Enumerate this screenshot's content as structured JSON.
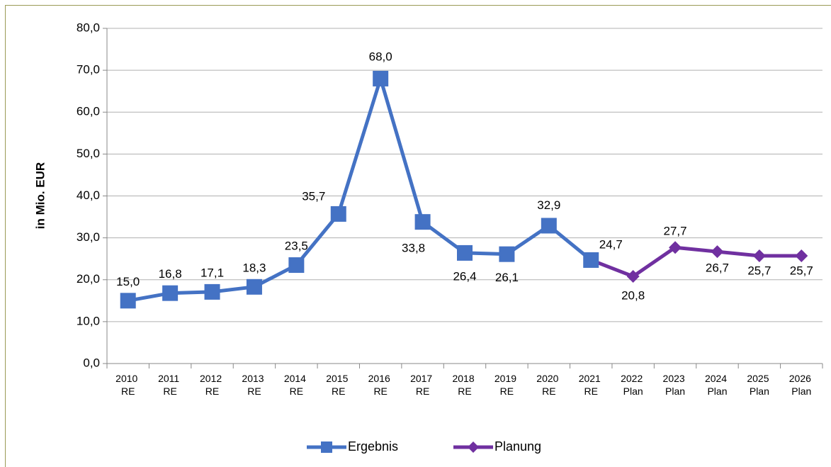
{
  "chart_data": {
    "type": "line",
    "y_label": "in Mio. EUR",
    "categories": [
      "2010 RE",
      "2011 RE",
      "2012 RE",
      "2013 RE",
      "2014 RE",
      "2015 RE",
      "2016 RE",
      "2017 RE",
      "2018 RE",
      "2019 RE",
      "2020 RE",
      "2021 RE",
      "2022 Plan",
      "2023 Plan",
      "2024 Plan",
      "2025 Plan",
      "2026 Plan"
    ],
    "series": [
      {
        "name": "Ergebnis",
        "color": "#4472c4",
        "marker": "square",
        "values": [
          15.0,
          16.8,
          17.1,
          18.3,
          23.5,
          35.7,
          68.0,
          33.8,
          26.4,
          26.1,
          32.9,
          24.7,
          null,
          null,
          null,
          null,
          null
        ],
        "value_labels": [
          "15,0",
          "16,8",
          "17,1",
          "18,3",
          "23,5",
          "35,7",
          "68,0",
          "33,8",
          "26,4",
          "26,1",
          "32,9",
          "24,7",
          null,
          null,
          null,
          null,
          null
        ]
      },
      {
        "name": "Planung",
        "color": "#7030a0",
        "marker": "diamond",
        "values": [
          null,
          null,
          null,
          null,
          null,
          null,
          null,
          null,
          null,
          null,
          null,
          24.7,
          20.8,
          27.7,
          26.7,
          25.7,
          25.7
        ],
        "value_labels": [
          null,
          null,
          null,
          null,
          null,
          null,
          null,
          null,
          null,
          null,
          null,
          null,
          "20,8",
          "27,7",
          "26,7",
          "25,7",
          "25,7"
        ]
      }
    ],
    "ylim": [
      0,
      80
    ],
    "yticks": [
      {
        "value": 0,
        "label": "0,0"
      },
      {
        "value": 10,
        "label": "10,0"
      },
      {
        "value": 20,
        "label": "20,0"
      },
      {
        "value": 30,
        "label": "30,0"
      },
      {
        "value": 40,
        "label": "40,0"
      },
      {
        "value": 50,
        "label": "50,0"
      },
      {
        "value": 60,
        "label": "60,0"
      },
      {
        "value": 70,
        "label": "70,0"
      },
      {
        "value": 80,
        "label": "80,0"
      }
    ],
    "grid": true,
    "legend": "bottom"
  }
}
